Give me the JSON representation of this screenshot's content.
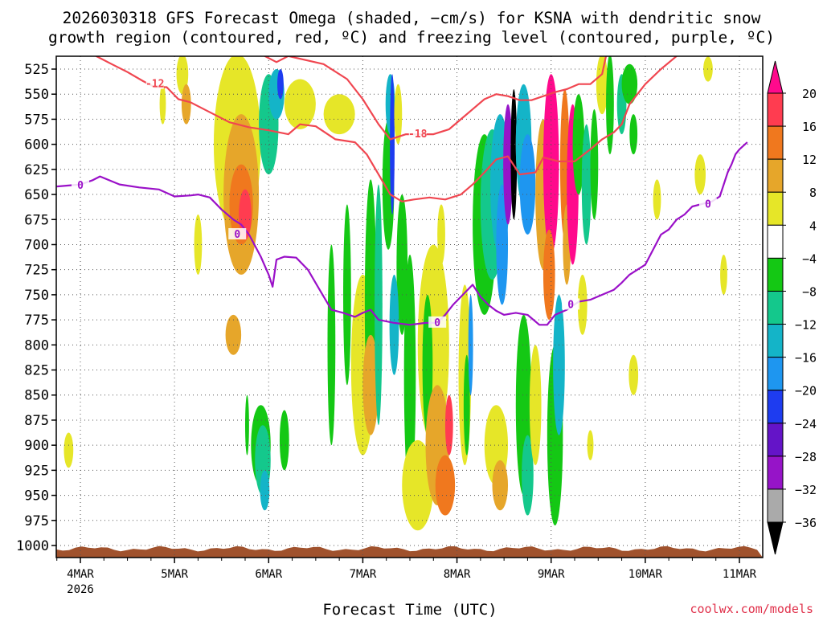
{
  "chart_data": {
    "type": "heatmap",
    "title_line1": "2026030318 GFS Forecast Omega (shaded, −cm/s) for KSNA with dendritic snow",
    "title_line2": "growth region (contoured, red, ºC) and freezing level (contoured, purple, ºC)",
    "xlabel": "Forecast Time (UTC)",
    "ylabel": "Pressure (hPa)",
    "credit": "coolwx.com/models",
    "year_label": "2026",
    "x_range_hours": [
      -6,
      170
    ],
    "ylim": [
      510,
      1010
    ],
    "x_ticks": [
      {
        "label": "4MAR",
        "hours": 0
      },
      {
        "label": "5MAR",
        "hours": 24
      },
      {
        "label": "6MAR",
        "hours": 48
      },
      {
        "label": "7MAR",
        "hours": 72
      },
      {
        "label": "8MAR",
        "hours": 96
      },
      {
        "label": "9MAR",
        "hours": 120
      },
      {
        "label": "10MAR",
        "hours": 144
      },
      {
        "label": "11MAR",
        "hours": 168
      }
    ],
    "y_ticks": [
      525,
      550,
      575,
      600,
      625,
      650,
      675,
      700,
      725,
      750,
      775,
      800,
      825,
      850,
      875,
      900,
      925,
      950,
      975,
      1000
    ],
    "colorbar": {
      "labels": [
        "20",
        "16",
        "12",
        "8",
        "4",
        "−4",
        "−8",
        "−12",
        "−16",
        "−20",
        "−24",
        "−28",
        "−32",
        "−36"
      ],
      "colors": [
        "#ff3c50",
        "#f0781e",
        "#e6a62a",
        "#e6e628",
        "#ffffff",
        "#14c814",
        "#14c88c",
        "#14b4c8",
        "#1e96f0",
        "#1e3cf0",
        "#6414c8",
        "#9614c8",
        "#aaaaaa",
        "#000000"
      ],
      "top_color": "#ff0a8c"
    },
    "omega_blobs": [
      {
        "h": -3,
        "p": 905,
        "hw": 1.2,
        "hp": 35,
        "c": "#e6e628"
      },
      {
        "h": 21,
        "p": 560,
        "hw": 0.8,
        "hp": 40,
        "c": "#e6e628"
      },
      {
        "h": 26,
        "p": 530,
        "hw": 1.5,
        "hp": 40,
        "c": "#e6e628"
      },
      {
        "h": 27,
        "p": 560,
        "hw": 1.2,
        "hp": 40,
        "c": "#e6a62a"
      },
      {
        "h": 30,
        "p": 700,
        "hw": 1,
        "hp": 60,
        "c": "#e6e628"
      },
      {
        "h": 40,
        "p": 600,
        "hw": 6,
        "hp": 180,
        "c": "#e6e628"
      },
      {
        "h": 41,
        "p": 650,
        "hw": 4.5,
        "hp": 160,
        "c": "#e6a62a"
      },
      {
        "h": 41,
        "p": 660,
        "hw": 3,
        "hp": 80,
        "c": "#f0781e"
      },
      {
        "h": 42,
        "p": 670,
        "hw": 1.6,
        "hp": 50,
        "c": "#ff3c50"
      },
      {
        "h": 39,
        "p": 790,
        "hw": 2,
        "hp": 40,
        "c": "#e6a62a"
      },
      {
        "h": 48,
        "p": 580,
        "hw": 2.5,
        "hp": 100,
        "c": "#14c88c"
      },
      {
        "h": 50,
        "p": 550,
        "hw": 2,
        "hp": 50,
        "c": "#14b4c8"
      },
      {
        "h": 51,
        "p": 540,
        "hw": 0.8,
        "hp": 30,
        "c": "#1e3cf0"
      },
      {
        "h": 46,
        "p": 900,
        "hw": 2.5,
        "hp": 80,
        "c": "#14c814"
      },
      {
        "h": 46.5,
        "p": 915,
        "hw": 2,
        "hp": 70,
        "c": "#14c88c"
      },
      {
        "h": 47,
        "p": 945,
        "hw": 1.2,
        "hp": 40,
        "c": "#14b4c8"
      },
      {
        "h": 42.5,
        "p": 880,
        "hw": 0.5,
        "hp": 60,
        "c": "#14c814"
      },
      {
        "h": 52,
        "p": 895,
        "hw": 1.2,
        "hp": 60,
        "c": "#14c814"
      },
      {
        "h": 56,
        "p": 560,
        "hw": 4,
        "hp": 50,
        "c": "#e6e628"
      },
      {
        "h": 66,
        "p": 570,
        "hw": 4,
        "hp": 40,
        "c": "#e6e628"
      },
      {
        "h": 64,
        "p": 800,
        "hw": 1,
        "hp": 200,
        "c": "#14c814"
      },
      {
        "h": 68,
        "p": 750,
        "hw": 1,
        "hp": 180,
        "c": "#14c814"
      },
      {
        "h": 72,
        "p": 820,
        "hw": 3,
        "hp": 180,
        "c": "#e6e628"
      },
      {
        "h": 74,
        "p": 760,
        "hw": 1.5,
        "hp": 250,
        "c": "#14c814"
      },
      {
        "h": 74,
        "p": 840,
        "hw": 2,
        "hp": 100,
        "c": "#e6a62a"
      },
      {
        "h": 76,
        "p": 760,
        "hw": 1,
        "hp": 240,
        "c": "#14c88c"
      },
      {
        "h": 78.5,
        "p": 640,
        "hw": 1.5,
        "hp": 130,
        "c": "#14c814"
      },
      {
        "h": 79,
        "p": 560,
        "hw": 1.2,
        "hp": 60,
        "c": "#14b4c8"
      },
      {
        "h": 79.5,
        "p": 600,
        "hw": 0.6,
        "hp": 140,
        "c": "#1e3cf0"
      },
      {
        "h": 81,
        "p": 570,
        "hw": 1,
        "hp": 60,
        "c": "#e6e628"
      },
      {
        "h": 82,
        "p": 720,
        "hw": 1.4,
        "hp": 140,
        "c": "#14c814"
      },
      {
        "h": 80,
        "p": 780,
        "hw": 1.2,
        "hp": 100,
        "c": "#14b4c8"
      },
      {
        "h": 84,
        "p": 830,
        "hw": 1.5,
        "hp": 240,
        "c": "#14c814"
      },
      {
        "h": 86,
        "p": 940,
        "hw": 4,
        "hp": 90,
        "c": "#e6e628"
      },
      {
        "h": 90,
        "p": 800,
        "hw": 4,
        "hp": 200,
        "c": "#e6e628"
      },
      {
        "h": 88.5,
        "p": 820,
        "hw": 1.3,
        "hp": 140,
        "c": "#14c814"
      },
      {
        "h": 91,
        "p": 900,
        "hw": 3,
        "hp": 120,
        "c": "#e6a62a"
      },
      {
        "h": 93,
        "p": 940,
        "hw": 2.5,
        "hp": 60,
        "c": "#f0781e"
      },
      {
        "h": 94,
        "p": 880,
        "hw": 1,
        "hp": 60,
        "c": "#ff3c50"
      },
      {
        "h": 92,
        "p": 690,
        "hw": 1,
        "hp": 60,
        "c": "#e6e628"
      },
      {
        "h": 98,
        "p": 830,
        "hw": 1.6,
        "hp": 180,
        "c": "#e6e628"
      },
      {
        "h": 98.5,
        "p": 860,
        "hw": 0.8,
        "hp": 100,
        "c": "#14c814"
      },
      {
        "h": 99.5,
        "p": 800,
        "hw": 0.6,
        "hp": 100,
        "c": "#1e96f0"
      },
      {
        "h": 103,
        "p": 680,
        "hw": 3,
        "hp": 180,
        "c": "#14c814"
      },
      {
        "h": 105,
        "p": 660,
        "hw": 3,
        "hp": 150,
        "c": "#14c88c"
      },
      {
        "h": 107,
        "p": 640,
        "hw": 2.5,
        "hp": 140,
        "c": "#14b4c8"
      },
      {
        "h": 107.5,
        "p": 700,
        "hw": 1.5,
        "hp": 120,
        "c": "#1e96f0"
      },
      {
        "h": 109,
        "p": 620,
        "hw": 1.2,
        "hp": 120,
        "c": "#9614c8"
      },
      {
        "h": 110.5,
        "p": 610,
        "hw": 0.8,
        "hp": 130,
        "c": "#000000"
      },
      {
        "h": 112,
        "p": 600,
        "hw": 1,
        "hp": 80,
        "c": "#aaaaaa"
      },
      {
        "h": 106,
        "p": 900,
        "hw": 3,
        "hp": 80,
        "c": "#e6e628"
      },
      {
        "h": 107,
        "p": 940,
        "hw": 2,
        "hp": 50,
        "c": "#e6a62a"
      },
      {
        "h": 113,
        "p": 600,
        "hw": 2,
        "hp": 120,
        "c": "#14b4c8"
      },
      {
        "h": 114,
        "p": 640,
        "hw": 2,
        "hp": 100,
        "c": "#1e96f0"
      },
      {
        "h": 113,
        "p": 860,
        "hw": 2,
        "hp": 180,
        "c": "#14c814"
      },
      {
        "h": 114,
        "p": 930,
        "hw": 1.5,
        "hp": 80,
        "c": "#14c88c"
      },
      {
        "h": 116,
        "p": 860,
        "hw": 1.5,
        "hp": 120,
        "c": "#e6e628"
      },
      {
        "h": 118,
        "p": 650,
        "hw": 2,
        "hp": 150,
        "c": "#e6a62a"
      },
      {
        "h": 120,
        "p": 620,
        "hw": 2,
        "hp": 180,
        "c": "#ff0a8c"
      },
      {
        "h": 119.5,
        "p": 730,
        "hw": 1.5,
        "hp": 90,
        "c": "#f0781e"
      },
      {
        "h": 121,
        "p": 890,
        "hw": 2,
        "hp": 180,
        "c": "#14c814"
      },
      {
        "h": 122,
        "p": 820,
        "hw": 1.5,
        "hp": 140,
        "c": "#14b4c8"
      },
      {
        "h": 123.5,
        "p": 620,
        "hw": 1.2,
        "hp": 150,
        "c": "#f0781e"
      },
      {
        "h": 124,
        "p": 700,
        "hw": 1,
        "hp": 80,
        "c": "#e6a62a"
      },
      {
        "h": 125.5,
        "p": 640,
        "hw": 1.5,
        "hp": 160,
        "c": "#ff0a8c"
      },
      {
        "h": 127,
        "p": 600,
        "hw": 1.5,
        "hp": 100,
        "c": "#14c814"
      },
      {
        "h": 129,
        "p": 640,
        "hw": 1.2,
        "hp": 120,
        "c": "#14c88c"
      },
      {
        "h": 131,
        "p": 620,
        "hw": 1,
        "hp": 110,
        "c": "#14c814"
      },
      {
        "h": 128,
        "p": 760,
        "hw": 1.2,
        "hp": 60,
        "c": "#e6e628"
      },
      {
        "h": 133,
        "p": 540,
        "hw": 1.5,
        "hp": 60,
        "c": "#e6e628"
      },
      {
        "h": 135,
        "p": 560,
        "hw": 1,
        "hp": 100,
        "c": "#14c814"
      },
      {
        "h": 138,
        "p": 560,
        "hw": 1.2,
        "hp": 60,
        "c": "#14c88c"
      },
      {
        "h": 140,
        "p": 540,
        "hw": 2,
        "hp": 40,
        "c": "#14c814"
      },
      {
        "h": 141,
        "p": 590,
        "hw": 1,
        "hp": 40,
        "c": "#14c814"
      },
      {
        "h": 141,
        "p": 830,
        "hw": 1.2,
        "hp": 40,
        "c": "#e6e628"
      },
      {
        "h": 130,
        "p": 900,
        "hw": 0.8,
        "hp": 30,
        "c": "#e6e628"
      },
      {
        "h": 147,
        "p": 655,
        "hw": 1,
        "hp": 40,
        "c": "#e6e628"
      },
      {
        "h": 158,
        "p": 630,
        "hw": 1.4,
        "hp": 40,
        "c": "#e6e628"
      },
      {
        "h": 160,
        "p": 525,
        "hw": 1.2,
        "hp": 25,
        "c": "#e6e628"
      },
      {
        "h": 164,
        "p": 730,
        "hw": 0.9,
        "hp": 40,
        "c": "#e6e628"
      }
    ],
    "dgz_contours": [
      {
        "label": "-12",
        "label_at": [
          19,
          540
        ],
        "points": [
          [
            4,
            512
          ],
          [
            8,
            520
          ],
          [
            12,
            528
          ],
          [
            16,
            537
          ],
          [
            19,
            543
          ],
          [
            22,
            543
          ],
          [
            25,
            555
          ],
          [
            28,
            558
          ],
          [
            33,
            568
          ],
          [
            38,
            578
          ],
          [
            43,
            583
          ],
          [
            48,
            586
          ],
          [
            53,
            590
          ],
          [
            56,
            580
          ],
          [
            60,
            582
          ],
          [
            65,
            595
          ],
          [
            70,
            598
          ],
          [
            73,
            610
          ],
          [
            76,
            630
          ],
          [
            79,
            650
          ],
          [
            82,
            657
          ],
          [
            85,
            655
          ],
          [
            89,
            653
          ],
          [
            93,
            655
          ],
          [
            97,
            650
          ],
          [
            100,
            640
          ],
          [
            103,
            628
          ],
          [
            106,
            615
          ],
          [
            109,
            612
          ],
          [
            112,
            630
          ],
          [
            116,
            628
          ],
          [
            118,
            613
          ],
          [
            122,
            617
          ],
          [
            126,
            617
          ],
          [
            130,
            605
          ],
          [
            133,
            595
          ],
          [
            136,
            588
          ],
          [
            138,
            580
          ],
          [
            140,
            560
          ],
          [
            144,
            540
          ],
          [
            148,
            525
          ],
          [
            152,
            512
          ]
        ]
      },
      {
        "label": "-18",
        "label_at": [
          86,
          590
        ],
        "points": [
          [
            47,
            512
          ],
          [
            50,
            518
          ],
          [
            53,
            512
          ],
          [
            62,
            520
          ],
          [
            68,
            535
          ],
          [
            72,
            555
          ],
          [
            76,
            580
          ],
          [
            79,
            595
          ],
          [
            83,
            590
          ],
          [
            86,
            590
          ],
          [
            90,
            590
          ],
          [
            94,
            585
          ],
          [
            97,
            575
          ],
          [
            100,
            565
          ],
          [
            103,
            555
          ],
          [
            106,
            550
          ],
          [
            109,
            552
          ],
          [
            112,
            556
          ],
          [
            115,
            556
          ],
          [
            118,
            552
          ],
          [
            121,
            548
          ],
          [
            124,
            545
          ],
          [
            127,
            540
          ],
          [
            130,
            540
          ],
          [
            133,
            530
          ],
          [
            134,
            512
          ]
        ]
      }
    ],
    "freezing_contour": {
      "label": "0",
      "label_at": [
        [
          0,
          641
        ],
        [
          40,
          690
        ],
        [
          91,
          778
        ],
        [
          125,
          760
        ],
        [
          160,
          660
        ]
      ],
      "points": [
        [
          -6,
          642
        ],
        [
          0,
          640
        ],
        [
          3,
          636
        ],
        [
          5,
          632
        ],
        [
          10,
          640
        ],
        [
          15,
          643
        ],
        [
          20,
          645
        ],
        [
          24,
          652
        ],
        [
          28,
          651
        ],
        [
          30,
          650
        ],
        [
          33,
          653
        ],
        [
          36,
          665
        ],
        [
          39,
          675
        ],
        [
          41,
          680
        ],
        [
          43,
          690
        ],
        [
          46,
          712
        ],
        [
          48,
          730
        ],
        [
          49,
          742
        ],
        [
          50,
          715
        ],
        [
          52,
          712
        ],
        [
          55,
          713
        ],
        [
          58,
          725
        ],
        [
          61,
          745
        ],
        [
          64,
          765
        ],
        [
          67,
          768
        ],
        [
          70,
          772
        ],
        [
          72,
          768
        ],
        [
          74,
          765
        ],
        [
          76,
          775
        ],
        [
          80,
          778
        ],
        [
          84,
          780
        ],
        [
          88,
          778
        ],
        [
          91,
          778
        ],
        [
          93,
          770
        ],
        [
          95,
          760
        ],
        [
          98,
          748
        ],
        [
          100,
          740
        ],
        [
          102,
          752
        ],
        [
          104,
          760
        ],
        [
          106,
          766
        ],
        [
          108,
          770
        ],
        [
          111,
          768
        ],
        [
          114,
          770
        ],
        [
          117,
          780
        ],
        [
          119,
          780
        ],
        [
          121,
          770
        ],
        [
          124,
          765
        ],
        [
          127,
          757
        ],
        [
          130,
          755
        ],
        [
          133,
          750
        ],
        [
          136,
          745
        ],
        [
          138,
          738
        ],
        [
          140,
          730
        ],
        [
          142,
          725
        ],
        [
          144,
          720
        ],
        [
          146,
          705
        ],
        [
          148,
          690
        ],
        [
          150,
          685
        ],
        [
          152,
          675
        ],
        [
          154,
          670
        ],
        [
          156,
          662
        ],
        [
          158,
          660
        ],
        [
          161,
          657
        ],
        [
          163,
          652
        ],
        [
          164,
          640
        ],
        [
          165,
          628
        ],
        [
          166,
          620
        ],
        [
          167,
          610
        ],
        [
          168,
          605
        ],
        [
          170,
          598
        ]
      ]
    },
    "terrain_color": "#a0522d"
  }
}
